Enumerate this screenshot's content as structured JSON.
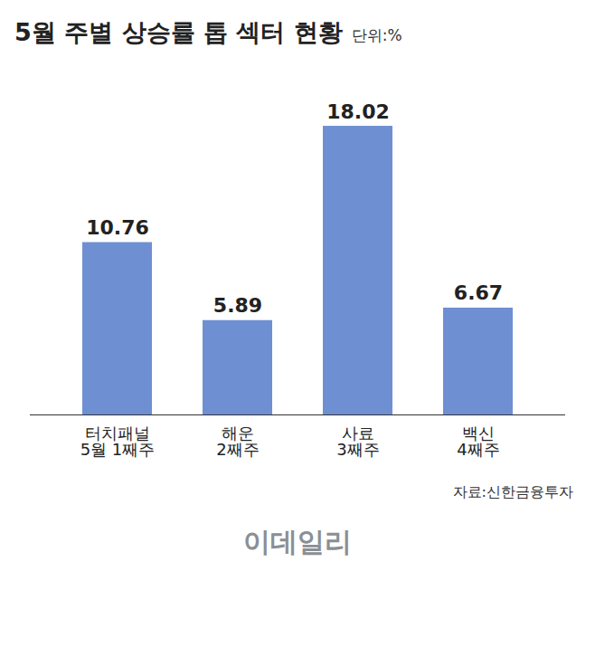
{
  "chart_data": {
    "type": "bar",
    "title": "5월 주별 상승률 톱 섹터 현황",
    "unit": "단위:%",
    "categories": [
      "터치패널",
      "해운",
      "사료",
      "백신"
    ],
    "subcategories": [
      "5월 1째주",
      "2째주",
      "3째주",
      "4째주"
    ],
    "values": [
      10.76,
      5.89,
      18.02,
      6.67
    ],
    "color": "#6f8fd3",
    "ylim": [
      0,
      20
    ],
    "data_labels": true,
    "tick_labels": "x",
    "grid": false,
    "source": "자료:신한금융투자",
    "watermark": "이데일리"
  }
}
